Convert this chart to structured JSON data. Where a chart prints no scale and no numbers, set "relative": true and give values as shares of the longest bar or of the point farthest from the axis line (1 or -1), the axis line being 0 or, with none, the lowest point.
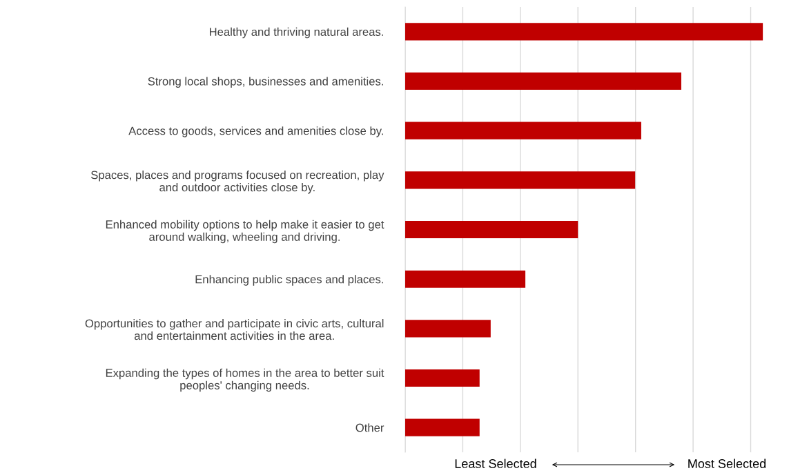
{
  "chart_data": {
    "type": "bar",
    "orientation": "horizontal",
    "relative": true,
    "grid": "x",
    "color": "#c00000",
    "categories": [
      "Healthy and thriving natural areas.",
      "Strong local shops, businesses and amenities.",
      "Access to goods, services and amenities close by.",
      "Spaces, places and programs focused on recreation, play\nand outdoor activities close by.",
      "Enhanced mobility options to help make it easier to get\naround walking, wheeling and driving.",
      "Enhancing public spaces and places.",
      "Opportunities to gather and participate in civic arts, cultural\nand entertainment activities in the area.",
      "Expanding the types of homes in the area to better suit\npeoples' changing needs.",
      "Other"
    ],
    "values": [
      1,
      0.772,
      0.66,
      0.643,
      0.483,
      0.336,
      0.239,
      0.208,
      0.208
    ],
    "annotations": [
      "Least Selected",
      "Most Selected"
    ]
  }
}
